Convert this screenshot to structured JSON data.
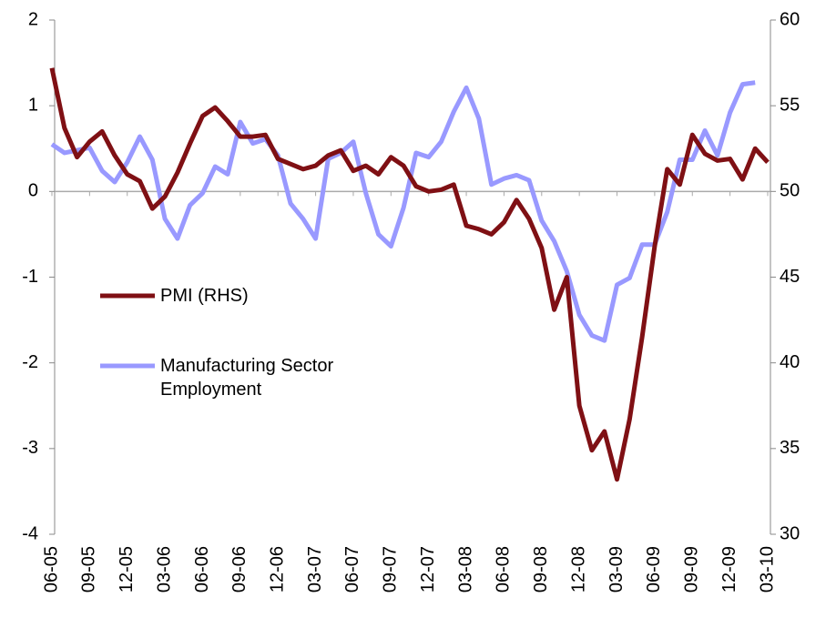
{
  "chart_data": {
    "type": "line",
    "categories": [
      "06-05",
      null,
      null,
      "09-05",
      null,
      null,
      "12-05",
      null,
      null,
      "03-06",
      null,
      null,
      "06-06",
      null,
      null,
      "09-06",
      null,
      null,
      "12-06",
      null,
      null,
      "03-07",
      null,
      null,
      "06-07",
      null,
      null,
      "09-07",
      null,
      null,
      "12-07",
      null,
      null,
      "03-08",
      null,
      null,
      "06-08",
      null,
      null,
      "09-08",
      null,
      null,
      "12-08",
      null,
      null,
      "03-09",
      null,
      null,
      "06-09",
      null,
      null,
      "09-09",
      null,
      null,
      "12-09",
      null,
      null,
      "03-10"
    ],
    "series": [
      {
        "name": "PMI (RHS)",
        "color": "#7f1014",
        "axis": "y2",
        "values": [
          57.2,
          53.7,
          52.0,
          52.9,
          53.5,
          52.1,
          51.0,
          50.6,
          49.0,
          49.7,
          51.1,
          52.8,
          54.4,
          54.9,
          54.1,
          53.2,
          53.2,
          53.3,
          51.9,
          51.6,
          51.3,
          51.5,
          52.1,
          52.4,
          51.2,
          51.5,
          51.0,
          52.0,
          51.5,
          50.3,
          50.0,
          50.1,
          50.4,
          48.0,
          47.8,
          47.5,
          48.2,
          49.5,
          48.4,
          46.7,
          43.1,
          45.0,
          37.5,
          34.9,
          36.0,
          33.2,
          36.7,
          41.5,
          46.8,
          51.3,
          50.4,
          53.3,
          52.2,
          51.8,
          51.9,
          50.7,
          52.5,
          51.7
        ]
      },
      {
        "name": "Manufacturing Sector Employment",
        "color": "#9999ff",
        "values": [
          0.55,
          0.45,
          0.48,
          0.51,
          0.24,
          0.11,
          0.34,
          0.64,
          0.37,
          -0.32,
          -0.55,
          -0.16,
          -0.02,
          0.29,
          0.2,
          0.81,
          0.56,
          0.61,
          0.42,
          -0.14,
          -0.32,
          -0.55,
          0.38,
          0.45,
          0.58,
          -0.02,
          -0.5,
          -0.64,
          -0.19,
          0.45,
          0.4,
          0.58,
          0.93,
          1.21,
          0.85,
          0.08,
          0.15,
          0.19,
          0.13,
          -0.34,
          -0.58,
          -0.93,
          -1.44,
          -1.68,
          -1.74,
          -1.09,
          -1.01,
          -0.62,
          -0.62,
          -0.24,
          0.37,
          0.37,
          0.71,
          0.42,
          0.92,
          1.25,
          1.27,
          null
        ]
      }
    ],
    "ylim": [
      -4,
      2
    ],
    "yticks": [
      -4,
      -3,
      -2,
      -1,
      0,
      1,
      2
    ],
    "y2lim": [
      30,
      60
    ],
    "y2ticks": [
      30,
      35,
      40,
      45,
      50,
      55,
      60
    ],
    "legend": "left"
  }
}
